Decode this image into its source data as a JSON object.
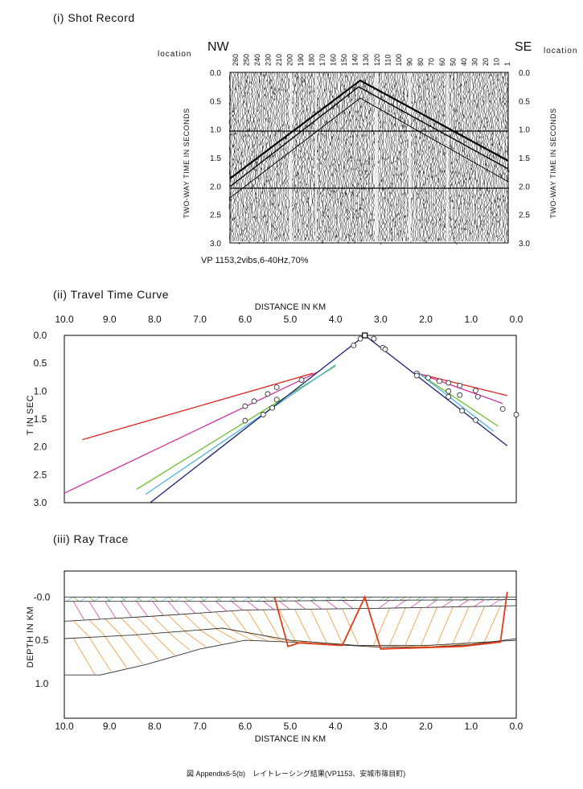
{
  "shot": {
    "title": "(i) Shot Record",
    "nw": "NW",
    "se": "SE",
    "location_label": "location",
    "locations": [
      "260",
      "250",
      "240",
      "230",
      "210",
      "200",
      "190",
      "180",
      "170",
      "160",
      "150",
      "140",
      "130",
      "120",
      "110",
      "100",
      "90",
      "80",
      "70",
      "60",
      "50",
      "40",
      "30",
      "20",
      "10",
      "1"
    ],
    "time_ticks": [
      "0.0",
      "0.5",
      "1.0",
      "1.5",
      "2.0",
      "2.5",
      "3.0"
    ],
    "ylabel": "TWO-WAY TIME IN SECONDS",
    "caption": "VP 1153,2vibs,6-40Hz,70%"
  },
  "travel": {
    "title": "(ii) Travel Time Curve",
    "ylabel": "T IN SEC"
  },
  "ray": {
    "title": "(iii) Ray Trace",
    "ylabel": "DEPTH IN KM",
    "yticks": [
      "-0.0",
      "0.5",
      "1.0"
    ]
  },
  "footer": "図 Appendix6-5(b)　レイトレーシング結果(VP1153、安城市篠目町)",
  "colors": {
    "red": "#e0241c",
    "magenta": "#d2329b",
    "green": "#6cbf2a",
    "cyan": "#4db3e0",
    "navy": "#1a1f7a",
    "orange": "#f08a1e",
    "refl": "#e23b16"
  },
  "chart_data": [
    {
      "type": "line",
      "title": "(ii) Travel Time Curve",
      "xlabel": "DISTANCE IN KM",
      "ylabel": "T IN SEC",
      "xlim": [
        10.0,
        0.0
      ],
      "ylim": [
        3.0,
        0.0
      ],
      "xticks": [
        "10.0",
        "9.0",
        "8.0",
        "7.0",
        "6.0",
        "5.0",
        "4.0",
        "3.0",
        "2.0",
        "1.0",
        "0.0"
      ],
      "yticks": [
        "0.0",
        "0.5",
        "1.0",
        "1.5",
        "2.0",
        "2.5",
        "3.0"
      ],
      "series": [
        {
          "color": "#e0241c",
          "segments": [
            [
              [
                9.6,
                1.87
              ],
              [
                4.5,
                0.68
              ]
            ],
            [
              [
                2.2,
                0.68
              ],
              [
                0.2,
                1.08
              ]
            ]
          ]
        },
        {
          "color": "#d2329b",
          "segments": [
            [
              [
                10.0,
                2.83
              ],
              [
                4.4,
                0.66
              ]
            ],
            [
              [
                2.2,
                0.67
              ],
              [
                0.3,
                1.22
              ]
            ]
          ]
        },
        {
          "color": "#6cbf2a",
          "segments": [
            [
              [
                8.4,
                2.76
              ],
              [
                4.0,
                0.55
              ]
            ],
            [
              [
                2.2,
                0.66
              ],
              [
                0.4,
                1.63
              ]
            ]
          ]
        },
        {
          "color": "#4db3e0",
          "segments": [
            [
              [
                8.2,
                2.85
              ],
              [
                4.0,
                0.53
              ]
            ],
            [
              [
                2.2,
                0.65
              ],
              [
                0.5,
                1.72
              ]
            ]
          ]
        },
        {
          "color": "#1a1f7a",
          "segments": [
            [
              [
                8.1,
                3.0
              ],
              [
                3.35,
                0.0
              ]
            ],
            [
              [
                3.35,
                0.0
              ],
              [
                0.2,
                1.98
              ]
            ]
          ]
        }
      ],
      "picks": [
        [
          3.6,
          0.18
        ],
        [
          3.45,
          0.06
        ],
        [
          3.15,
          0.06
        ],
        [
          2.95,
          0.22
        ],
        [
          2.9,
          0.25
        ],
        [
          4.75,
          0.8
        ],
        [
          5.3,
          0.93
        ],
        [
          5.3,
          1.15
        ],
        [
          5.5,
          1.05
        ],
        [
          5.4,
          1.3
        ],
        [
          5.8,
          1.18
        ],
        [
          5.6,
          1.42
        ],
        [
          6.0,
          1.27
        ],
        [
          6.0,
          1.53
        ],
        [
          2.2,
          0.68
        ],
        [
          2.2,
          0.72
        ],
        [
          1.95,
          0.76
        ],
        [
          1.7,
          0.82
        ],
        [
          1.5,
          0.85
        ],
        [
          1.25,
          0.9
        ],
        [
          1.5,
          1.0
        ],
        [
          1.25,
          1.07
        ],
        [
          0.9,
          0.99
        ],
        [
          0.85,
          1.1
        ],
        [
          1.5,
          1.1
        ],
        [
          0.3,
          1.32
        ],
        [
          0.0,
          1.42
        ],
        [
          1.2,
          1.35
        ],
        [
          0.9,
          1.52
        ]
      ],
      "shot_point": [
        3.35,
        0.0
      ]
    },
    {
      "type": "line",
      "title": "(iii) Ray Trace",
      "xlabel": "DISTANCE IN KM",
      "ylabel": "DEPTH IN KM",
      "xlim": [
        10.0,
        0.0
      ],
      "ylim": [
        -0.3,
        1.4
      ],
      "xticks": [
        "10.0",
        "9.0",
        "8.0",
        "7.0",
        "6.0",
        "5.0",
        "4.0",
        "3.0",
        "2.0",
        "1.0",
        "0.0"
      ],
      "yticks": [
        "-0.0",
        "0.5",
        "1.0"
      ],
      "layers": [
        {
          "name": "surface",
          "points": [
            [
              10,
              0.0
            ],
            [
              0,
              0.0
            ]
          ]
        },
        {
          "name": "layer1",
          "points": [
            [
              10,
              0.05
            ],
            [
              6,
              0.05
            ],
            [
              4,
              0.04
            ],
            [
              0,
              0.03
            ]
          ]
        },
        {
          "name": "layer2",
          "points": [
            [
              10,
              0.28
            ],
            [
              8,
              0.22
            ],
            [
              6,
              0.15
            ],
            [
              3,
              0.13
            ],
            [
              0,
              0.1
            ]
          ]
        },
        {
          "name": "layer3",
          "points": [
            [
              10,
              0.48
            ],
            [
              8.5,
              0.44
            ],
            [
              6.5,
              0.36
            ],
            [
              5,
              0.5
            ],
            [
              3.5,
              0.56
            ],
            [
              2,
              0.56
            ],
            [
              0,
              0.5
            ]
          ]
        },
        {
          "name": "layer4",
          "points": [
            [
              10,
              0.9
            ],
            [
              9.2,
              0.9
            ],
            [
              8.2,
              0.78
            ],
            [
              7,
              0.6
            ],
            [
              6,
              0.5
            ],
            [
              5,
              0.52
            ],
            [
              4,
              0.55
            ],
            [
              3,
              0.58
            ],
            [
              2,
              0.58
            ],
            [
              1,
              0.55
            ],
            [
              0,
              0.48
            ]
          ]
        }
      ],
      "reflection_path": [
        [
          5.35,
          0.0
        ],
        [
          5.05,
          0.57
        ],
        [
          4.8,
          0.53
        ],
        [
          3.85,
          0.56
        ],
        [
          3.35,
          0.0
        ],
        [
          3.0,
          0.6
        ],
        [
          1.2,
          0.57
        ],
        [
          0.35,
          0.52
        ],
        [
          0.2,
          -0.06
        ]
      ]
    }
  ]
}
